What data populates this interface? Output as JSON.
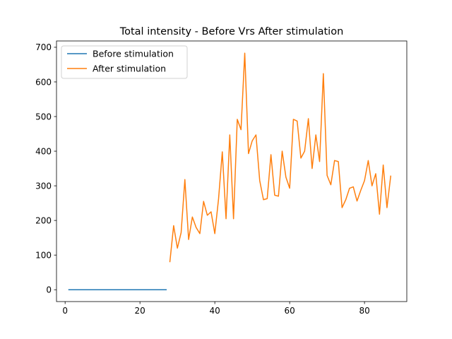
{
  "chart_data": {
    "type": "line",
    "title": "Total intensity - Before Vrs After stimulation",
    "xlabel": "",
    "ylabel": "",
    "xlim": [
      -2.3,
      91.3
    ],
    "ylim": [
      -34.2,
      718.2
    ],
    "xticks": [
      0,
      20,
      40,
      60,
      80
    ],
    "yticks": [
      0,
      100,
      200,
      300,
      400,
      500,
      600,
      700
    ],
    "grid": false,
    "legend_position": "top-left",
    "series": [
      {
        "name": "Before stimulation",
        "color": "#1f77b4",
        "x": [
          1,
          2,
          3,
          4,
          5,
          6,
          7,
          8,
          9,
          10,
          11,
          12,
          13,
          14,
          15,
          16,
          17,
          18,
          19,
          20,
          21,
          22,
          23,
          24,
          25,
          26,
          27
        ],
        "y": [
          0,
          0,
          0,
          0,
          0,
          0,
          0,
          0,
          0,
          0,
          0,
          0,
          0,
          0,
          0,
          0,
          0,
          0,
          0,
          0,
          0,
          0,
          0,
          0,
          0,
          0,
          0
        ]
      },
      {
        "name": "After stimulation",
        "color": "#ff7f0e",
        "x": [
          28,
          29,
          30,
          31,
          32,
          33,
          34,
          35,
          36,
          37,
          38,
          39,
          40,
          41,
          42,
          43,
          44,
          45,
          46,
          47,
          48,
          49,
          50,
          51,
          52,
          53,
          54,
          55,
          56,
          57,
          58,
          59,
          60,
          61,
          62,
          63,
          64,
          65,
          66,
          67,
          68,
          69,
          70,
          71,
          72,
          73,
          74,
          75,
          76,
          77,
          78,
          79,
          80,
          81,
          82,
          83,
          84,
          85,
          86,
          87
        ],
        "y": [
          81,
          185,
          120,
          165,
          318,
          145,
          210,
          180,
          162,
          255,
          215,
          225,
          162,
          262,
          398,
          205,
          447,
          205,
          492,
          462,
          683,
          393,
          430,
          447,
          315,
          260,
          263,
          390,
          273,
          270,
          400,
          325,
          293,
          492,
          487,
          380,
          400,
          494,
          350,
          447,
          370,
          624,
          330,
          303,
          373,
          370,
          237,
          260,
          293,
          297,
          256,
          287,
          315,
          373,
          300,
          335,
          218,
          360,
          237,
          328
        ]
      }
    ]
  }
}
